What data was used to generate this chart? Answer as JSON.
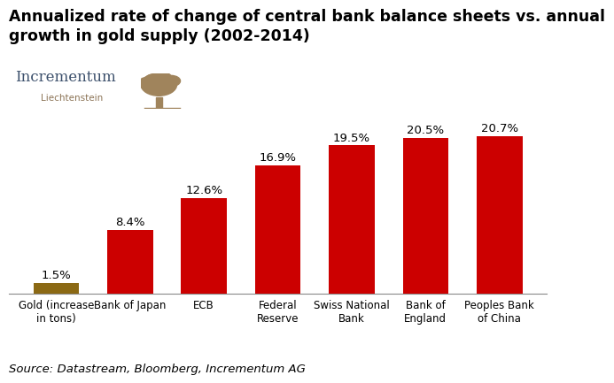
{
  "title": "Annualized rate of change of central bank balance sheets vs. annual\ngrowth in gold supply (2002-2014)",
  "categories": [
    "Gold (increase\nin tons)",
    "Bank of Japan",
    "ECB",
    "Federal\nReserve",
    "Swiss National\nBank",
    "Bank of\nEngland",
    "Peoples Bank\nof China"
  ],
  "values": [
    1.5,
    8.4,
    12.6,
    16.9,
    19.5,
    20.5,
    20.7
  ],
  "labels": [
    "1.5%",
    "8.4%",
    "12.6%",
    "16.9%",
    "19.5%",
    "20.5%",
    "20.7%"
  ],
  "bar_colors": [
    "#8B6914",
    "#CC0000",
    "#CC0000",
    "#CC0000",
    "#CC0000",
    "#CC0000",
    "#CC0000"
  ],
  "source_text": "Source: Datastream, Bloomberg, Incrementum AG",
  "logo_text": "Incrementum",
  "logo_subtext": "Liechtenstein",
  "logo_text_color": "#3B4F6B",
  "logo_subtext_color": "#8B7355",
  "tree_color": "#A0845C",
  "title_fontsize": 12.5,
  "label_fontsize": 9.5,
  "tick_fontsize": 8.5,
  "source_fontsize": 9.5,
  "bg_color": "#FFFFFF",
  "text_color": "#000000",
  "label_color": "#000000",
  "ylim": [
    0,
    24
  ],
  "bar_width": 0.62
}
